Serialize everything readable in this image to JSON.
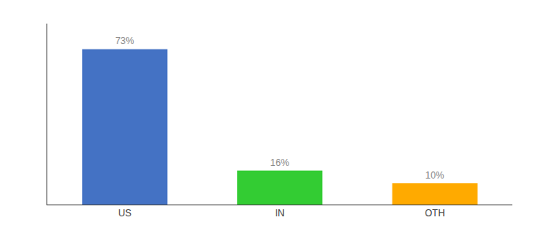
{
  "chart_data": {
    "type": "bar",
    "categories": [
      "US",
      "IN",
      "OTH"
    ],
    "values": [
      73,
      16,
      10
    ],
    "value_labels": [
      "73%",
      "16%",
      "10%"
    ],
    "colors": [
      "#4472c4",
      "#33cc33",
      "#ffaa00"
    ],
    "ylim": [
      0,
      85
    ],
    "data_labels": true,
    "tick_labels": "x",
    "grid": false
  }
}
